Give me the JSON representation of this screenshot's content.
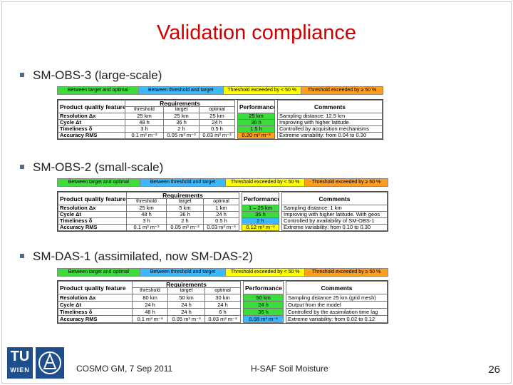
{
  "title": "Validation compliance",
  "legend": [
    "Between target and optimal",
    "Between threshold and target",
    "Threshold exceeded by < 50 %",
    "Threshold exceeded by ≥ 50 %"
  ],
  "header": {
    "feature": "Product quality feature",
    "requirements": "Requirements",
    "threshold": "threshold",
    "target": "target",
    "optimal": "optimal",
    "performance": "Performance",
    "comments": "Comments"
  },
  "sections": [
    {
      "bullet": "SM-OBS-3 (large-scale)",
      "rows": [
        {
          "feature": "Resolution Δx",
          "threshold": "25 km",
          "target": "25 km",
          "optimal": "25 km",
          "performance": "25 km",
          "perf_color": "green",
          "comment": "Sampling distance: 12.5 km"
        },
        {
          "feature": "Cycle Δt",
          "threshold": "48 h",
          "target": "36 h",
          "optimal": "24 h",
          "performance": "36 h",
          "perf_color": "green",
          "comment": "Improving with higher latitude"
        },
        {
          "feature": "Timeliness δ",
          "threshold": "3 h",
          "target": "2 h",
          "optimal": "0.5 h",
          "performance": "1.5 h",
          "perf_color": "green",
          "comment": "Controlled by acquisition mechanisms"
        },
        {
          "feature": "Accuracy RMS",
          "threshold": "0.1 m³ m⁻³",
          "target": "0.05 m³ m⁻³",
          "optimal": "0.03 m³ m⁻³",
          "performance": "0.20 m³ m⁻³",
          "perf_color": "orange",
          "comment": "Extreme variability: from 0.04 to 0.30"
        }
      ]
    },
    {
      "bullet": "SM-OBS-2 (small-scale)",
      "rows": [
        {
          "feature": "Resolution Δx",
          "threshold": "25 km",
          "target": "5 km",
          "optimal": "1 km",
          "performance": "1 – 25 km",
          "perf_color": "green",
          "comment": "Sampling distance: 1 km"
        },
        {
          "feature": "Cycle Δt",
          "threshold": "48 h",
          "target": "36 h",
          "optimal": "24 h",
          "performance": "36 h",
          "perf_color": "green",
          "comment": "Improving with higher latitude. With geos"
        },
        {
          "feature": "Timeliness δ",
          "threshold": "3 h",
          "target": "2 h",
          "optimal": "0.5 h",
          "performance": "2 h",
          "perf_color": "blue",
          "comment": "Controlled by availability of SM-OBS-1"
        },
        {
          "feature": "Accuracy RMS",
          "threshold": "0.1 m³ m⁻³",
          "target": "0.05 m³ m⁻³",
          "optimal": "0.03 m³ m⁻³",
          "performance": "0.12 m³ m⁻³",
          "perf_color": "yellow",
          "comment": "Extreme variability: from 0.10 to 0.30"
        }
      ]
    },
    {
      "bullet": "SM-DAS-1 (assimilated, now SM-DAS-2)",
      "rows": [
        {
          "feature": "Resolution Δx",
          "threshold": "80 km",
          "target": "50 km",
          "optimal": "30 km",
          "performance": "50 km",
          "perf_color": "green",
          "comment": "Sampling distance 25 km (grid mesh)"
        },
        {
          "feature": "Cycle Δt",
          "threshold": "24 h",
          "target": "24 h",
          "optimal": "24 h",
          "performance": "24 h",
          "perf_color": "green",
          "comment": "Output from the model"
        },
        {
          "feature": "Timeliness δ",
          "threshold": "48 h",
          "target": "24 h",
          "optimal": "6 h",
          "performance": "36 h",
          "perf_color": "green",
          "comment": "Controlled by the assimilation time lag"
        },
        {
          "feature": "Accuracy RMS",
          "threshold": "0.1 m³ m⁻³",
          "target": "0.05 m³ m⁻³",
          "optimal": "0.03 m³ m⁻³",
          "performance": "0.08 m³ m⁻³",
          "perf_color": "blue",
          "comment": "Extreme variability: from 0.02 to 0.12"
        }
      ]
    }
  ],
  "footer": {
    "logo_tu": "TU",
    "logo_wien": "WIEN",
    "event": "COSMO GM, 7 Sep 2011",
    "topic": "H-SAF Soil Moisture",
    "page": "26"
  }
}
